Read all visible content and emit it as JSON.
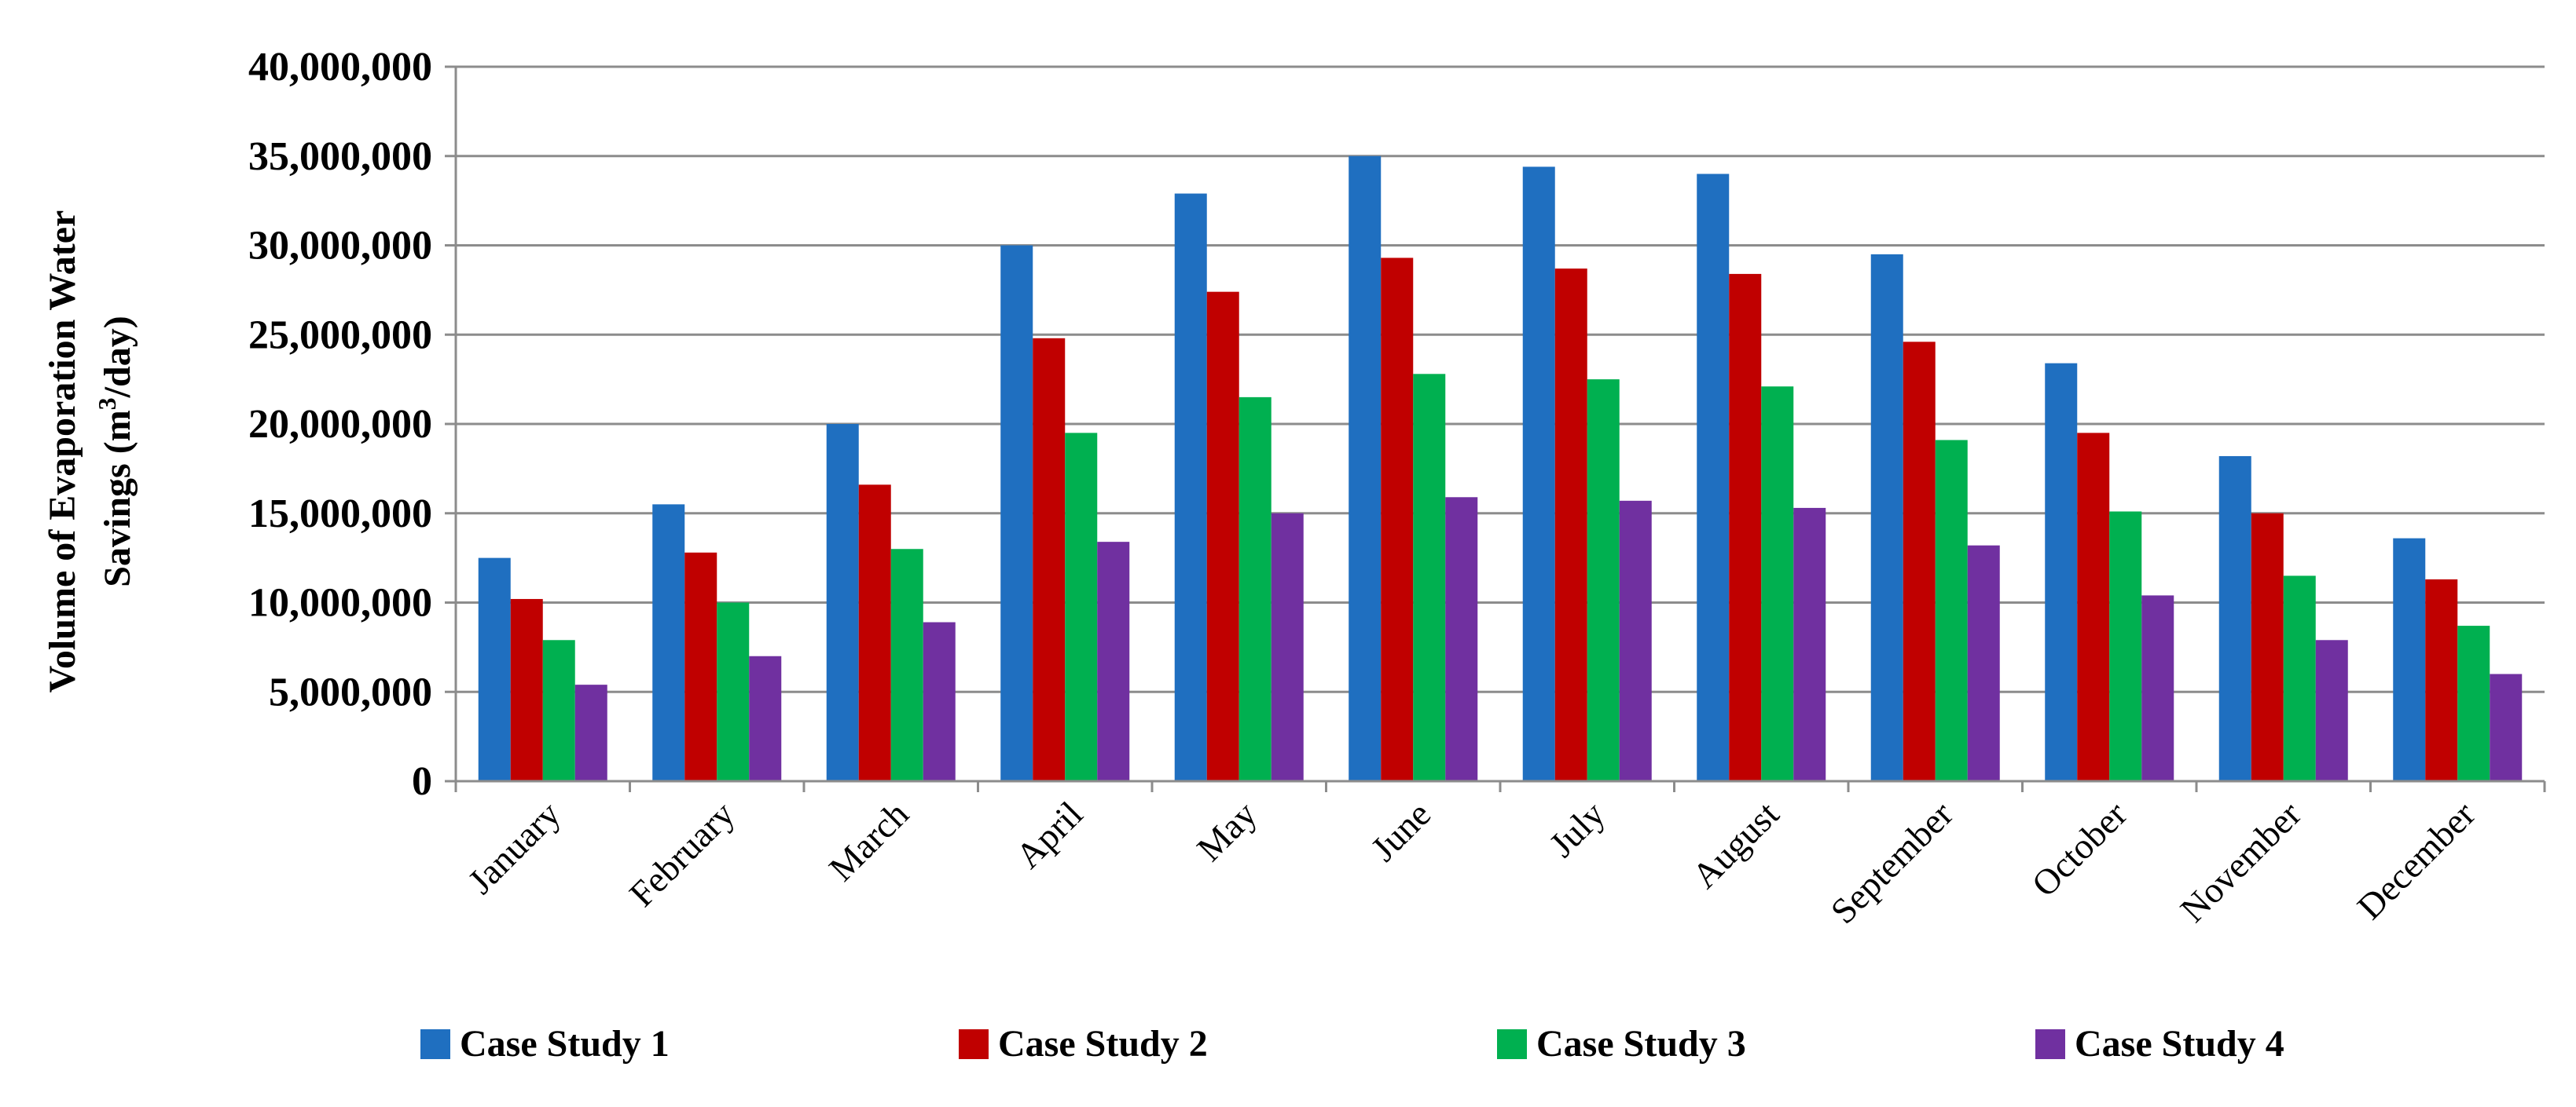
{
  "chart_data": {
    "type": "bar",
    "title": "",
    "xlabel": "",
    "ylabel": {
      "line1": "Volume of Evaporation Water",
      "line2_pre": "Savings (m",
      "line2_sup": "3",
      "line2_post": "/day)"
    },
    "ylim": [
      0,
      40000000
    ],
    "yticks": [
      0,
      5000000,
      10000000,
      15000000,
      20000000,
      25000000,
      30000000,
      35000000,
      40000000
    ],
    "ytick_labels": [
      "0",
      "5,000,000",
      "10,000,000",
      "15,000,000",
      "20,000,000",
      "25,000,000",
      "30,000,000",
      "35,000,000",
      "40,000,000"
    ],
    "grid": true,
    "legend_position": "bottom",
    "categories": [
      "January",
      "February",
      "March",
      "April",
      "May",
      "June",
      "July",
      "August",
      "September",
      "October",
      "November",
      "December"
    ],
    "series": [
      {
        "name": "Case Study 1",
        "color": "#1f6fc0",
        "values": [
          12500000,
          15500000,
          20000000,
          30000000,
          32900000,
          35000000,
          34400000,
          34000000,
          29500000,
          23400000,
          18200000,
          13600000
        ]
      },
      {
        "name": "Case Study 2",
        "color": "#c00000",
        "values": [
          10200000,
          12800000,
          16600000,
          24800000,
          27400000,
          29300000,
          28700000,
          28400000,
          24600000,
          19500000,
          15000000,
          11300000
        ]
      },
      {
        "name": "Case Study 3",
        "color": "#00b050",
        "values": [
          7900000,
          10000000,
          13000000,
          19500000,
          21500000,
          22800000,
          22500000,
          22100000,
          19100000,
          15100000,
          11500000,
          8700000
        ]
      },
      {
        "name": "Case Study 4",
        "color": "#7030a0",
        "values": [
          5400000,
          7000000,
          8900000,
          13400000,
          15000000,
          15900000,
          15700000,
          15300000,
          13200000,
          10400000,
          7900000,
          6000000
        ]
      }
    ]
  }
}
